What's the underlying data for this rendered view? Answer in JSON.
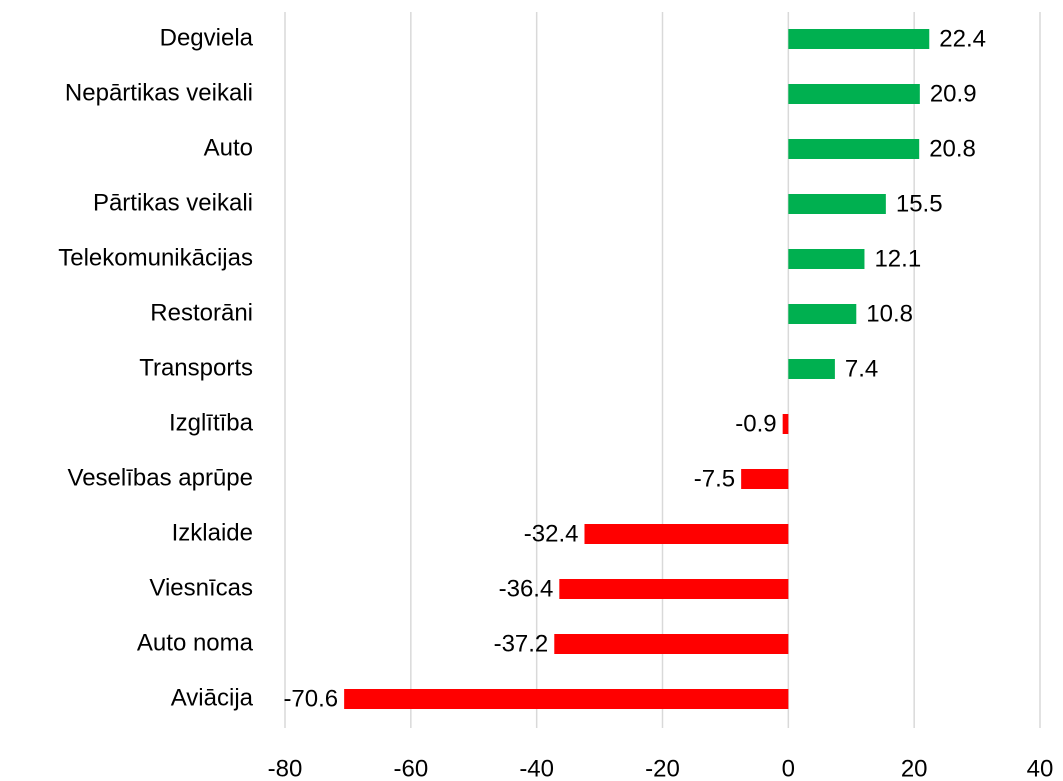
{
  "chart_data": {
    "type": "hbar",
    "categories": [
      "Degviela",
      "Nepārtikas veikali",
      "Auto",
      "Pārtikas veikali",
      "Telekomunikācijas",
      "Restorāni",
      "Transports",
      "Izglītība",
      "Veselības aprūpe",
      "Izklaide",
      "Viesnīcas",
      "Auto noma",
      "Aviācija"
    ],
    "values": [
      22.4,
      20.9,
      20.8,
      15.5,
      12.1,
      10.8,
      7.4,
      -0.9,
      -7.5,
      -32.4,
      -36.4,
      -37.2,
      -70.6
    ],
    "color_positive": "#00b050",
    "color_negative": "#ff0000",
    "xlim": [
      -80,
      40
    ],
    "xticks": [
      -80,
      -60,
      -40,
      -20,
      0,
      20,
      40
    ],
    "grid": true
  }
}
